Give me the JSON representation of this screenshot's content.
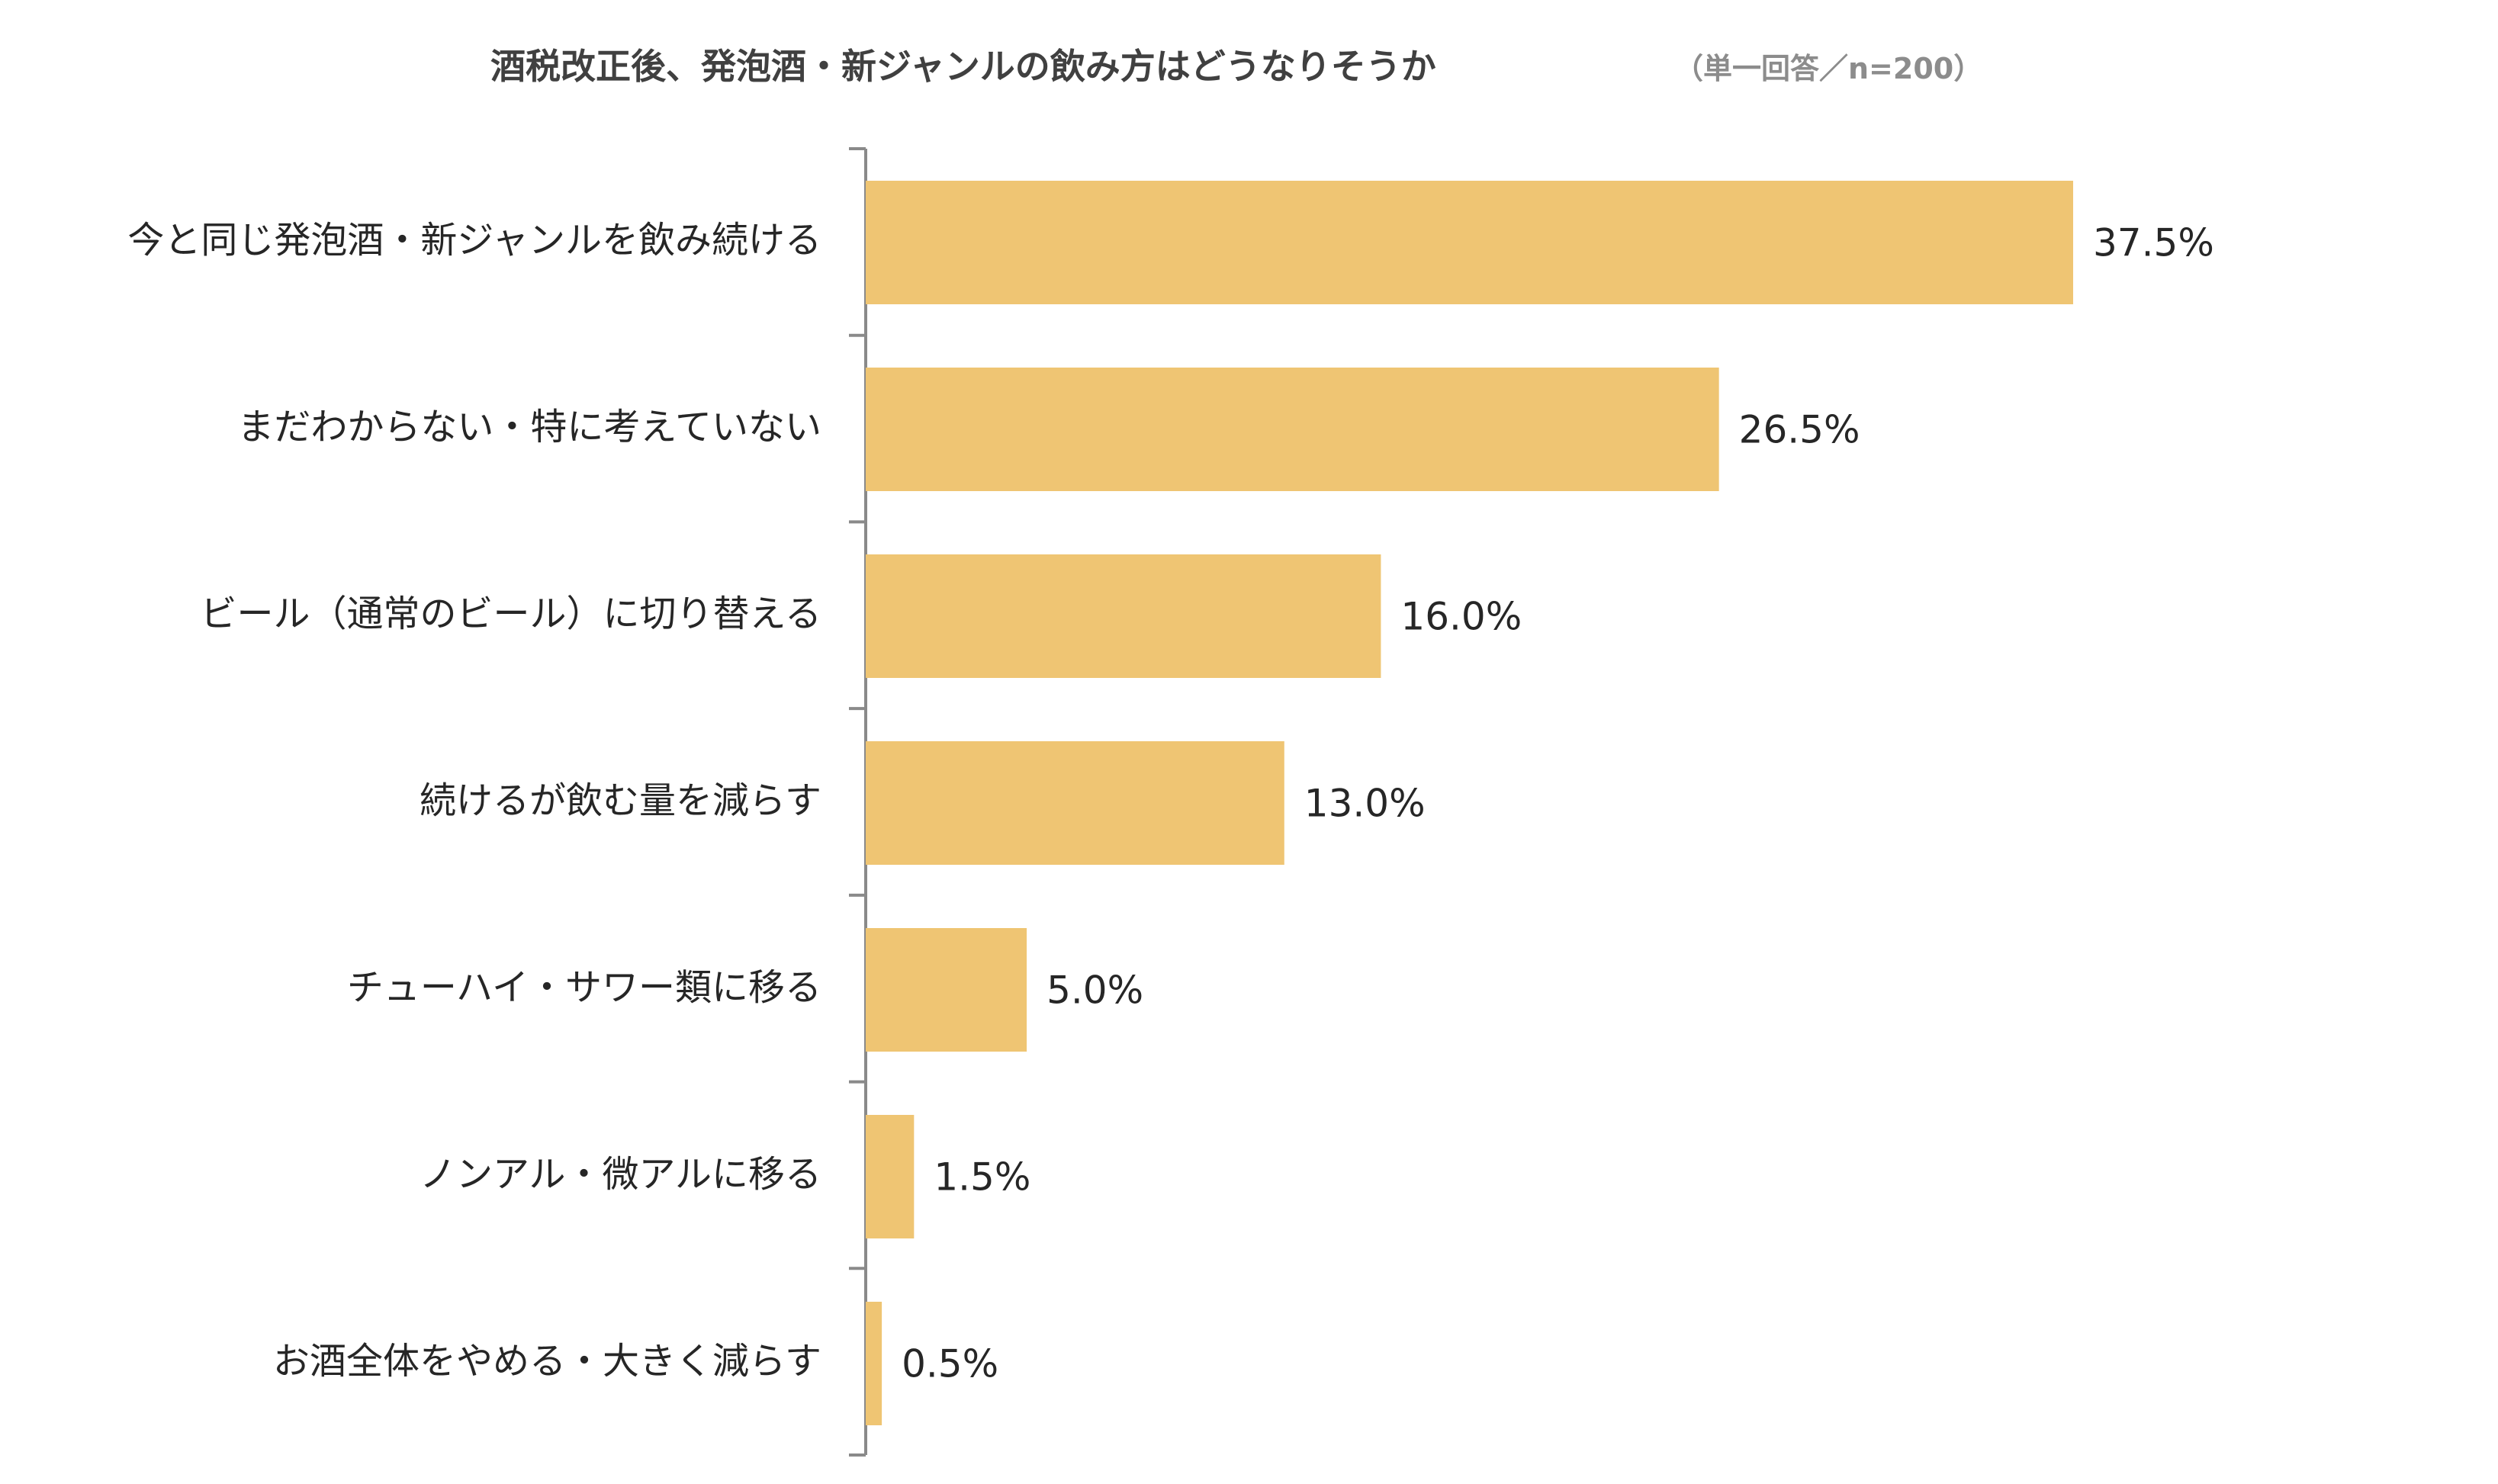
{
  "chart_data": {
    "type": "bar",
    "orientation": "horizontal",
    "title": "酒税改正後、発泡酒・新ジャンルの飲み方はどうなりそうか",
    "subtitle": "（単一回答／n=200）",
    "categories": [
      "今と同じ発泡酒・新ジャンルを飲み続ける",
      "まだわからない・特に考えていない",
      "ビール（通常のビール）に切り替える",
      "続けるが飲む量を減らす",
      "チューハイ・サワー類に移る",
      "ノンアル・微アルに移る",
      "お酒全体をやめる・大きく減らす"
    ],
    "values": [
      37.5,
      26.5,
      16.0,
      13.0,
      5.0,
      1.5,
      0.5
    ],
    "value_labels": [
      "37.5%",
      "26.5%",
      "16.0%",
      "13.0%",
      "5.0%",
      "1.5%",
      "0.5%"
    ],
    "unit": "%",
    "xlim": [
      0,
      37.5
    ],
    "grid": false,
    "legend": "none",
    "colors": {
      "bar": "#EFC573",
      "axis": "#8A8A8A",
      "title": "#404040",
      "subtitle": "#8C8C8C",
      "label": "#262626"
    }
  }
}
